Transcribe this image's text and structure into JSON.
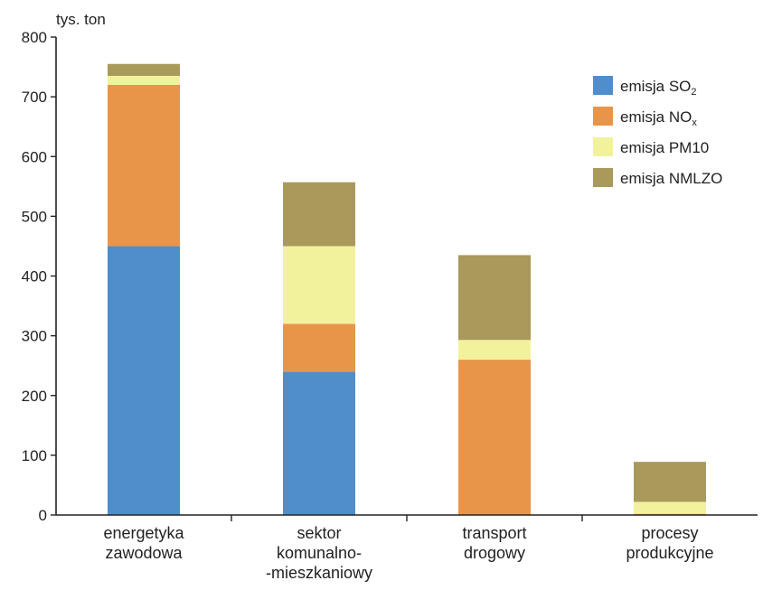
{
  "chart_data": {
    "type": "bar",
    "stacked": true,
    "y_unit": "tys. ton",
    "ylim": [
      0,
      800
    ],
    "yticks": [
      0,
      100,
      200,
      300,
      400,
      500,
      600,
      700,
      800
    ],
    "grid": false,
    "legend_position": "top-right",
    "categories": [
      [
        "energetyka",
        "zawodowa"
      ],
      [
        "sektor",
        "komunalno-",
        "-mieszkaniowy"
      ],
      [
        "transport",
        "drogowy"
      ],
      [
        "procesy",
        "produkcyjne"
      ]
    ],
    "series": [
      {
        "name": "emisja SO",
        "subscript": "2",
        "color": "#4f8ecb",
        "values": [
          450,
          240,
          0,
          0
        ]
      },
      {
        "name": "emisja NO",
        "subscript": "x",
        "color": "#e8954a",
        "values": [
          270,
          80,
          260,
          2
        ]
      },
      {
        "name": "emisja PM10",
        "subscript": "",
        "color": "#f3f29c",
        "values": [
          15,
          130,
          33,
          20
        ]
      },
      {
        "name": "emisja NMLZO",
        "subscript": "",
        "color": "#a99a5b",
        "values": [
          20,
          107,
          142,
          67
        ]
      }
    ]
  }
}
